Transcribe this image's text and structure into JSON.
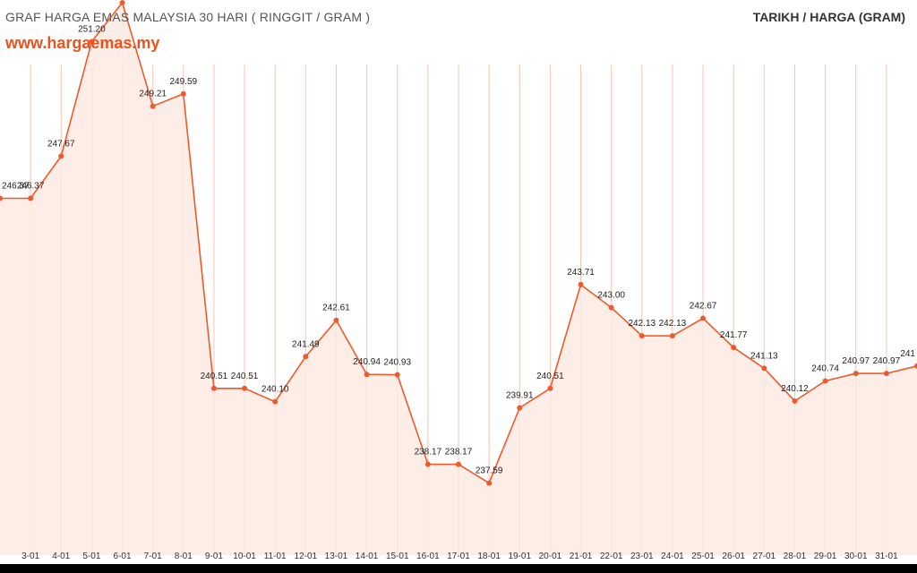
{
  "header": {
    "title": "GRAF HARGA EMAS MALAYSIA 30 HARI ( RINGGIT / GRAM )",
    "site": "www.hargaemas.my",
    "right_label": "TARIKH / HARGA (GRAM)"
  },
  "colors": {
    "line": "#ef5a2a",
    "area_fill": "#fdeae3",
    "grid": "#f6c4b1",
    "background": "#ffffff",
    "frame": "#000000"
  },
  "chart_data": {
    "type": "area",
    "title": "GRAF HARGA EMAS MALAYSIA 30 HARI ( RINGGIT / GRAM )",
    "xlabel": "",
    "ylabel": "",
    "categories": [
      "",
      "3-01",
      "4-01",
      "5-01",
      "6-01",
      "7-01",
      "8-01",
      "9-01",
      "10-01",
      "11-01",
      "12-01",
      "13-01",
      "14-01",
      "15-01",
      "16-01",
      "17-01",
      "18-01",
      "19-01",
      "20-01",
      "21-01",
      "22-01",
      "23-01",
      "24-01",
      "25-01",
      "26-01",
      "27-01",
      "28-01",
      "29-01",
      "30-01",
      "31-01",
      ""
    ],
    "values": [
      246.37,
      246.37,
      247.67,
      251.2,
      252.4,
      249.21,
      249.59,
      240.51,
      240.51,
      240.1,
      241.49,
      242.61,
      240.94,
      240.93,
      238.17,
      238.17,
      237.59,
      239.91,
      240.51,
      243.71,
      243.0,
      242.13,
      242.13,
      242.67,
      241.77,
      241.13,
      240.12,
      240.74,
      240.97,
      240.97,
      241.2
    ],
    "labels": [
      "246.37",
      "246.37",
      "247.67",
      "251.20",
      "",
      "249.21",
      "249.59",
      "240.51",
      "240.51",
      "240.10",
      "241.49",
      "242.61",
      "240.94",
      "240.93",
      "238.17",
      "238.17",
      "237.59",
      "239.91",
      "240.51",
      "243.71",
      "243.00",
      "242.13",
      "242.13",
      "242.67",
      "241.77",
      "241.13",
      "240.12",
      "240.74",
      "240.97",
      "240.97",
      "241"
    ],
    "ylim": [
      235.04,
      252.4
    ],
    "grid": true,
    "legend": "none"
  }
}
